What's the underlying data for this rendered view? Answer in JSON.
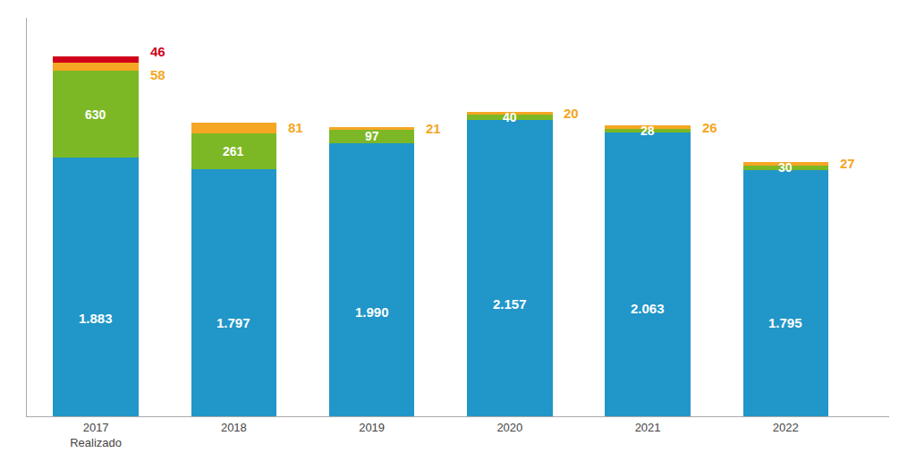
{
  "chart_data": {
    "type": "bar",
    "stacked": true,
    "categories": [
      "2017\nRealizado",
      "2018",
      "2019",
      "2020",
      "2021",
      "2022"
    ],
    "series": [
      {
        "color": "#2196C8",
        "values": [
          1883,
          1797,
          1990,
          2157,
          2063,
          1795
        ],
        "value_labels": [
          "1.883",
          "1.797",
          "1.990",
          "2.157",
          "2.063",
          "1.795"
        ],
        "data_labels": true
      },
      {
        "color": "#7CB825",
        "values": [
          630,
          261,
          97,
          40,
          28,
          30
        ],
        "data_labels": true
      },
      {
        "color": "#F5A623",
        "values": [
          58,
          81,
          21,
          20,
          26,
          27
        ],
        "data_labels": true
      },
      {
        "color": "#D0021B",
        "values": [
          46,
          0,
          0,
          0,
          0,
          0
        ],
        "data_labels": true
      }
    ],
    "ylim": [
      0,
      2900
    ],
    "grid": false,
    "tick_labels": "x"
  }
}
